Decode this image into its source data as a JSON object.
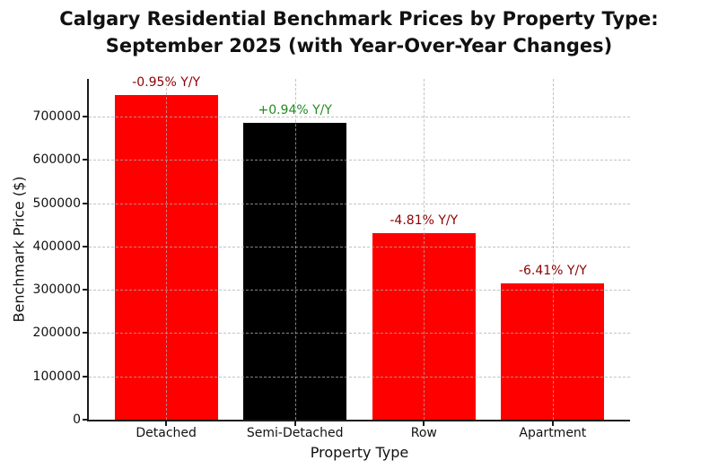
{
  "title": {
    "line1": "Calgary Residential Benchmark Prices by Property Type:",
    "line2": "September 2025 (with Year-Over-Year Changes)"
  },
  "chart_data": {
    "type": "bar",
    "title": "Calgary Residential Benchmark Prices by Property Type: September 2025 (with Year-Over-Year Changes)",
    "xlabel": "Property Type",
    "ylabel": "Benchmark Price ($)",
    "categories": [
      "Detached",
      "Semi-Detached",
      "Row",
      "Apartment"
    ],
    "values": [
      750000,
      685000,
      431000,
      314000
    ],
    "annotations": [
      "-0.95% Y/Y",
      "+0.94% Y/Y",
      "-4.81% Y/Y",
      "-6.41% Y/Y"
    ],
    "bar_colors": [
      "#ff0000",
      "#000000",
      "#ff0000",
      "#ff0000"
    ],
    "annotation_colors": [
      "#8b0000",
      "#228b22",
      "#8b0000",
      "#8b0000"
    ],
    "yticks": [
      0,
      100000,
      200000,
      300000,
      400000,
      500000,
      600000,
      700000
    ],
    "ylim": [
      0,
      787500
    ],
    "xlim": [
      -0.6,
      3.6
    ],
    "bar_width_units": 0.8,
    "grid": "dashed, both axes, drawn above bars",
    "legend": "none"
  }
}
